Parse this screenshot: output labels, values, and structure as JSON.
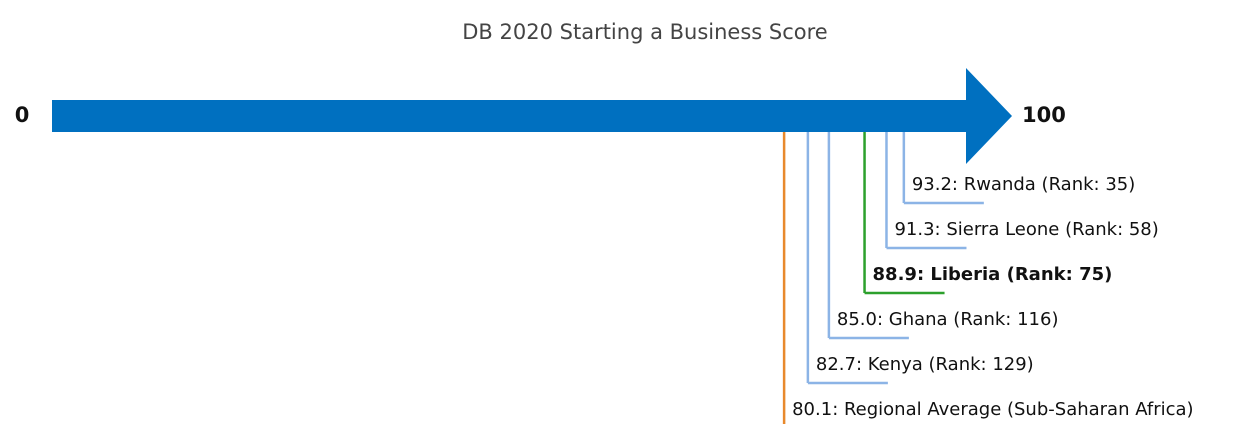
{
  "chart_data": {
    "type": "number-line",
    "title": "DB 2020 Starting a Business Score",
    "xlim": [
      0,
      100
    ],
    "xticks": [
      0,
      100
    ],
    "arrow_color": "#0070c0",
    "values": [
      80.1,
      82.7,
      85.0,
      88.9,
      91.3,
      93.2
    ],
    "value_labels": [
      "80.1: Regional Average (Sub-Saharan Africa)",
      "82.7: Kenya (Rank: 129)",
      "85.0: Ghana (Rank: 116)",
      "88.9: Liberia (Rank: 75)",
      "91.3: Sierra Leone (Rank: 58)",
      "93.2: Rwanda (Rank: 35)"
    ],
    "colors": [
      "#e8892c",
      "#8cb4e6",
      "#8cb4e6",
      "#2ca02c",
      "#8cb4e6",
      "#8cb4e6"
    ],
    "highlight_color": "#2ca02c"
  }
}
